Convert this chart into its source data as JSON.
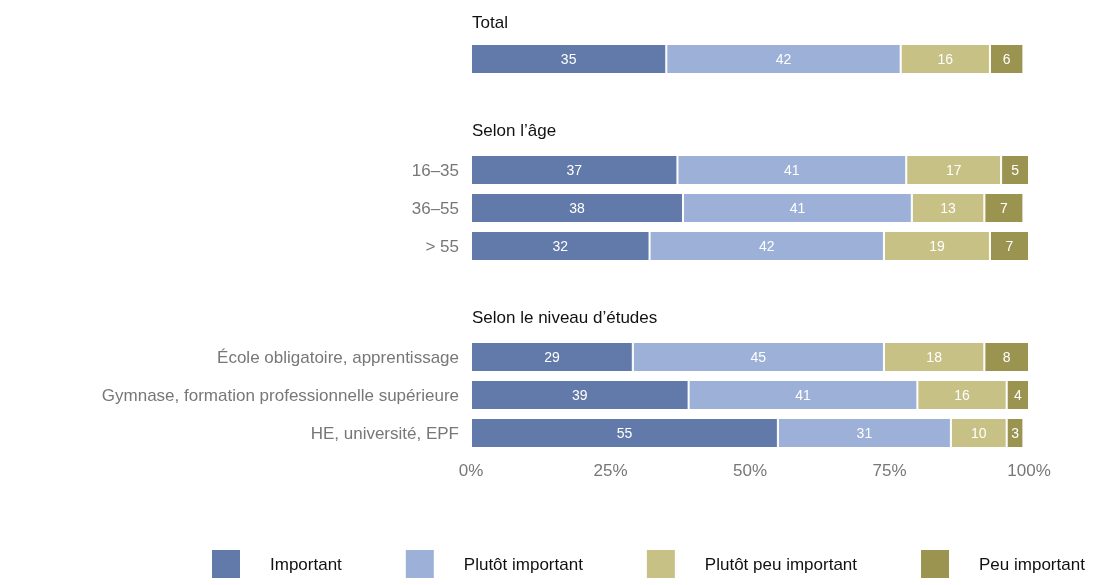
{
  "chart_data": [
    {
      "type": "bar",
      "title": "Total",
      "orientation": "horizontal",
      "stacked": true,
      "data_labels": true,
      "tick_labels": "y",
      "categories": [
        null
      ],
      "xlim": [
        0,
        100
      ],
      "series": [
        {
          "color": "#627aa9",
          "values": [
            35
          ]
        },
        {
          "color": "#9cb0d8",
          "values": [
            42
          ]
        },
        {
          "color": "#c8c186",
          "values": [
            16
          ]
        },
        {
          "color": "#9b9451",
          "values": [
            6
          ]
        }
      ]
    },
    {
      "type": "bar",
      "title": "Selon l’âge",
      "orientation": "horizontal",
      "stacked": true,
      "data_labels": true,
      "tick_labels": "y",
      "categories": [
        "16–35",
        "36–55",
        "> 55"
      ],
      "xlim": [
        0,
        100
      ],
      "series": [
        {
          "color": "#627aa9",
          "values": [
            37,
            38,
            32
          ]
        },
        {
          "color": "#9cb0d8",
          "values": [
            41,
            41,
            42
          ]
        },
        {
          "color": "#c8c186",
          "values": [
            17,
            13,
            19
          ]
        },
        {
          "color": "#9b9451",
          "values": [
            5,
            7,
            7
          ]
        }
      ]
    },
    {
      "type": "bar",
      "title": "Selon le niveau d’études",
      "orientation": "horizontal",
      "stacked": true,
      "data_labels": true,
      "legend": "bottom",
      "categories": [
        "École obligatoire, apprentissage",
        "Gymnase, formation professionnelle supérieure",
        "HE, université, EPF"
      ],
      "xlim": [
        0,
        100
      ],
      "xticks": [
        {
          "value": 0,
          "label": "0%"
        },
        {
          "value": 25,
          "label": "25%"
        },
        {
          "value": 50,
          "label": "50%"
        },
        {
          "value": 75,
          "label": "75%"
        },
        {
          "value": 100,
          "label": "100%"
        }
      ],
      "series": [
        {
          "name": "Important",
          "color": "#627aa9",
          "values": [
            29,
            39,
            55
          ]
        },
        {
          "name": "Plutôt important",
          "color": "#9cb0d8",
          "values": [
            45,
            41,
            31
          ]
        },
        {
          "name": "Plutôt peu important",
          "color": "#c8c186",
          "values": [
            18,
            16,
            10
          ]
        },
        {
          "name": "Peu important",
          "color": "#9b9451",
          "values": [
            8,
            4,
            3
          ]
        }
      ]
    }
  ]
}
